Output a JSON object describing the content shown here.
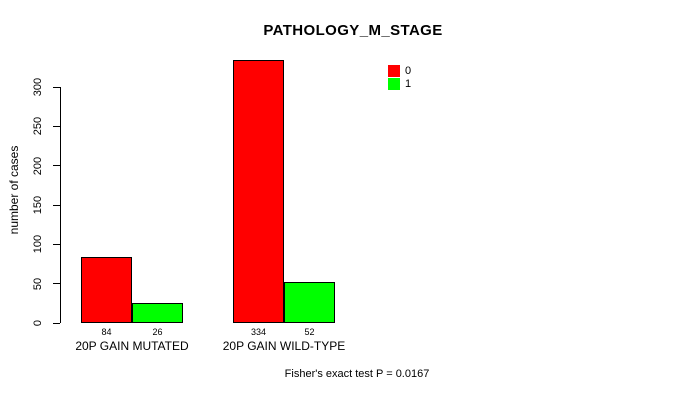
{
  "chart_data": {
    "type": "bar",
    "title": "PATHOLOGY_M_STAGE",
    "categories": [
      "20P GAIN MUTATED",
      "20P GAIN WILD-TYPE"
    ],
    "series": [
      {
        "name": "0",
        "color": "#FF0000",
        "values": [
          84,
          334
        ]
      },
      {
        "name": "1",
        "color": "#00FF00",
        "values": [
          26,
          52
        ]
      }
    ],
    "ylabel": "number of cases",
    "xlabel": "",
    "yticks": [
      0,
      50,
      100,
      150,
      200,
      250,
      300
    ],
    "ylim": [
      0,
      300
    ],
    "grid": false,
    "bar_value_labels_shown": true,
    "legend": {
      "position": "top-right",
      "entries": [
        "0",
        "1"
      ]
    },
    "footnote": "Fisher's exact test P = 0.0167",
    "colors": {
      "background": "#FFFFFF",
      "axis": "#000000",
      "text": "#000000"
    }
  }
}
